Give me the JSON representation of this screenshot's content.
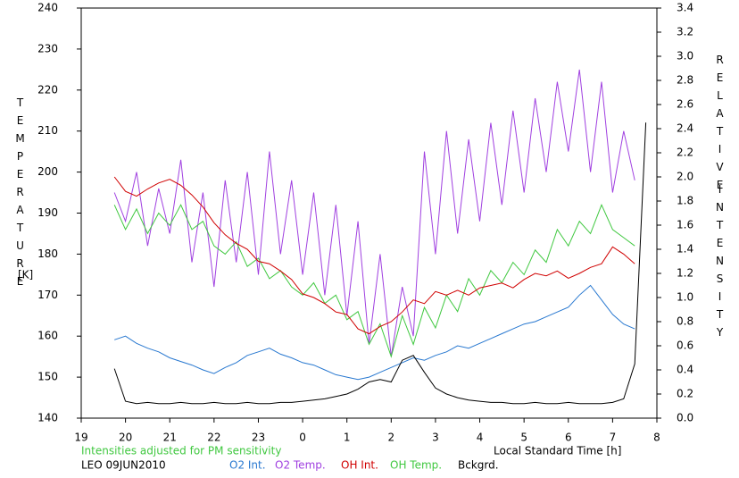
{
  "chart_data": {
    "type": "line",
    "ylabel": "TEMPERATURE",
    "yunit": "[K]",
    "y2label": [
      "RELATIVE",
      "INTENSITY"
    ],
    "xlabel": "Local Standard Time [h]",
    "note": "Intensities adjusted for PM sensitivity",
    "station": "LEO 09JUN2010",
    "xlim": [
      19,
      32
    ],
    "xticks": [
      19,
      20,
      21,
      22,
      23,
      {
        "value": 24,
        "label": "0"
      },
      {
        "value": 25,
        "label": "1"
      },
      {
        "value": 26,
        "label": "2"
      },
      {
        "value": 27,
        "label": "3"
      },
      {
        "value": 28,
        "label": "4"
      },
      {
        "value": 29,
        "label": "5"
      },
      {
        "value": 30,
        "label": "6"
      },
      {
        "value": 31,
        "label": "7"
      },
      {
        "value": 32,
        "label": "8"
      }
    ],
    "ylim": [
      140,
      240
    ],
    "yticks": [
      140,
      150,
      160,
      170,
      180,
      190,
      200,
      210,
      220,
      230,
      240
    ],
    "y2lim": [
      0,
      3.4
    ],
    "y2ticks": [
      {
        "value": 0,
        "label": "0.0"
      },
      0.2,
      0.4,
      0.6,
      0.8,
      {
        "value": 1,
        "label": "1.0"
      },
      1.2,
      1.4,
      1.6,
      1.8,
      {
        "value": 2,
        "label": "2.0"
      },
      2.2,
      2.4,
      2.6,
      2.8,
      {
        "value": 3,
        "label": "3.0"
      },
      3.2,
      3.4
    ],
    "x": [
      19.75,
      20,
      20.25,
      20.5,
      20.75,
      21,
      21.25,
      21.5,
      21.75,
      22,
      22.25,
      22.5,
      22.75,
      23,
      23.25,
      23.5,
      23.75,
      24,
      24.25,
      24.5,
      24.75,
      25,
      25.25,
      25.5,
      25.75,
      26,
      26.25,
      26.5,
      26.75,
      27,
      27.25,
      27.5,
      27.75,
      28,
      28.25,
      28.5,
      28.75,
      29,
      29.25,
      29.5,
      29.75,
      30,
      30.25,
      30.5,
      30.75,
      31,
      31.25,
      31.5,
      31.75
    ],
    "series": [
      {
        "name": "O2 Int.",
        "color": "#2878d0",
        "axis": "y2",
        "values": [
          0.65,
          0.68,
          0.62,
          0.58,
          0.55,
          0.5,
          0.47,
          0.44,
          0.4,
          0.37,
          0.42,
          0.46,
          0.52,
          0.55,
          0.58,
          0.53,
          0.5,
          0.46,
          0.44,
          0.4,
          0.36,
          0.34,
          0.32,
          0.34,
          0.38,
          0.42,
          0.46,
          0.5,
          0.48,
          0.52,
          0.55,
          0.6,
          0.58,
          0.62,
          0.66,
          0.7,
          0.74,
          0.78,
          0.8,
          0.84,
          0.88,
          0.92,
          1.02,
          1.1,
          0.98,
          0.86,
          0.78,
          0.74,
          null
        ]
      },
      {
        "name": "O2 Temp.",
        "color": "#a040e0",
        "values": [
          195,
          188,
          200,
          182,
          196,
          185,
          203,
          178,
          195,
          172,
          198,
          178,
          200,
          175,
          205,
          180,
          198,
          175,
          195,
          170,
          192,
          165,
          188,
          158,
          180,
          155,
          172,
          160,
          205,
          180,
          210,
          185,
          208,
          188,
          212,
          192,
          215,
          195,
          218,
          200,
          222,
          205,
          225,
          200,
          222,
          195,
          210,
          198,
          null
        ]
      },
      {
        "name": "OH Int.",
        "color": "#d00000",
        "axis": "y2",
        "values": [
          2.0,
          1.88,
          1.84,
          1.9,
          1.95,
          1.98,
          1.93,
          1.85,
          1.75,
          1.62,
          1.52,
          1.45,
          1.4,
          1.3,
          1.28,
          1.22,
          1.15,
          1.03,
          1.0,
          0.95,
          0.88,
          0.86,
          0.74,
          0.7,
          0.76,
          0.8,
          0.88,
          0.98,
          0.95,
          1.05,
          1.02,
          1.06,
          1.02,
          1.08,
          1.1,
          1.12,
          1.08,
          1.15,
          1.2,
          1.18,
          1.22,
          1.16,
          1.2,
          1.25,
          1.28,
          1.42,
          1.36,
          1.28,
          null
        ]
      },
      {
        "name": "OH Temp.",
        "color": "#40c840",
        "values": [
          192,
          186,
          191,
          185,
          190,
          187,
          192,
          186,
          188,
          182,
          180,
          183,
          177,
          179,
          174,
          176,
          172,
          170,
          173,
          168,
          170,
          164,
          166,
          158,
          163,
          155,
          165,
          158,
          167,
          162,
          170,
          166,
          174,
          170,
          176,
          173,
          178,
          175,
          181,
          178,
          186,
          182,
          188,
          185,
          192,
          186,
          184,
          182,
          null
        ]
      },
      {
        "name": "Bckgrd.",
        "color": "#000000",
        "axis": "y2",
        "values": [
          0.41,
          0.14,
          0.12,
          0.13,
          0.12,
          0.12,
          0.13,
          0.12,
          0.12,
          0.13,
          0.12,
          0.12,
          0.13,
          0.12,
          0.12,
          0.13,
          0.13,
          0.14,
          0.15,
          0.16,
          0.18,
          0.2,
          0.24,
          0.3,
          0.32,
          0.3,
          0.48,
          0.52,
          0.38,
          0.25,
          0.2,
          0.17,
          0.15,
          0.14,
          0.13,
          0.13,
          0.12,
          0.12,
          0.13,
          0.12,
          0.12,
          0.13,
          0.12,
          0.12,
          0.12,
          0.13,
          0.16,
          0.45,
          2.45
        ]
      }
    ]
  }
}
